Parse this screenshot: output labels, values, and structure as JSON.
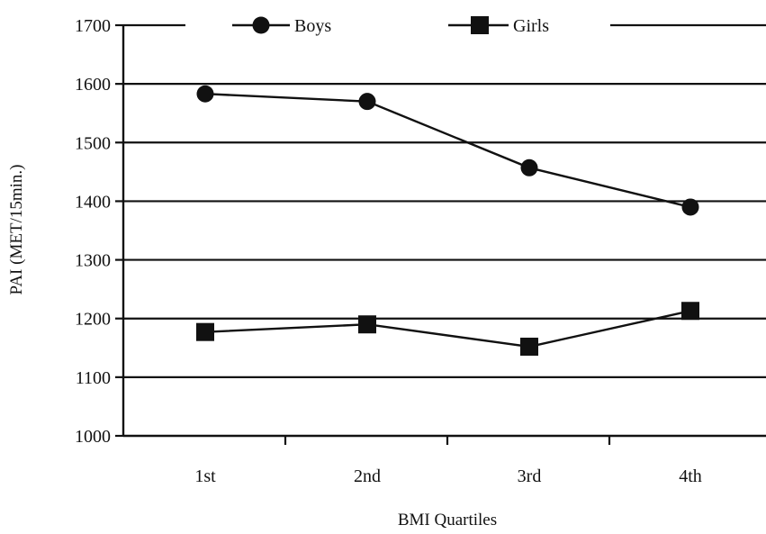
{
  "chart_data": {
    "type": "line",
    "categories": [
      "1st",
      "2nd",
      "3rd",
      "4th"
    ],
    "series": [
      {
        "name": "Boys",
        "marker": "circle",
        "values": [
          1583,
          1570,
          1457,
          1390
        ]
      },
      {
        "name": "Girls",
        "marker": "square",
        "values": [
          1177,
          1190,
          1152,
          1213
        ]
      }
    ],
    "xlabel": "BMI Quartiles",
    "ylabel": "PAI (MET/15min.)",
    "ylim": [
      1000,
      1700
    ],
    "yticks": [
      1000,
      1100,
      1200,
      1300,
      1400,
      1500,
      1600,
      1700
    ],
    "grid": "horizontal",
    "legend": "top",
    "color": "#111111"
  }
}
